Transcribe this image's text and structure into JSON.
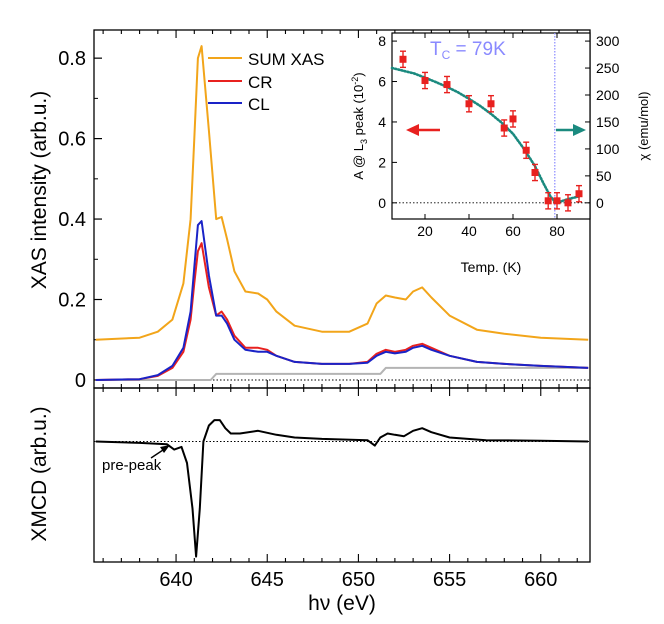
{
  "colors": {
    "sum": "#f2a51a",
    "cr": "#e8211f",
    "cl": "#1a23c7",
    "bg_step": "#b4b4b4",
    "xmcd": "#000000",
    "inset_points": "#e8211f",
    "inset_fit": "#1b8a7f",
    "tc_line": "#8a8aff",
    "arrow_left": "#e8211f",
    "arrow_right": "#1b8a7f"
  },
  "chart_data": [
    {
      "type": "line",
      "panel": "main-xas",
      "ylabel": "XAS intensity (arb.u.)",
      "xlim": [
        635.5,
        662.7
      ],
      "ylim": [
        -0.02,
        0.87
      ],
      "xticks": [
        640,
        645,
        650,
        655,
        660
      ],
      "yticks": [
        {
          "v": 0,
          "t": "0"
        },
        {
          "v": 0.2,
          "t": "0.2"
        },
        {
          "v": 0.4,
          "t": "0.4"
        },
        {
          "v": 0.6,
          "t": "0.6"
        },
        {
          "v": 0.8,
          "t": "0.8"
        }
      ],
      "legend_position": "top-right",
      "series": [
        {
          "name": "SUM XAS",
          "key": "sum",
          "x": [
            635.6,
            638.0,
            639.0,
            639.8,
            640.4,
            640.8,
            641.0,
            641.2,
            641.4,
            641.8,
            642.2,
            642.5,
            642.8,
            643.2,
            643.8,
            644.5,
            645.0,
            645.5,
            646.5,
            648.0,
            649.5,
            650.5,
            651.0,
            651.5,
            652.0,
            652.6,
            653.0,
            653.5,
            654.0,
            655.0,
            656.5,
            658.0,
            660.0,
            662.6
          ],
          "y": [
            0.1,
            0.105,
            0.12,
            0.15,
            0.24,
            0.4,
            0.6,
            0.8,
            0.83,
            0.62,
            0.4,
            0.405,
            0.35,
            0.27,
            0.22,
            0.215,
            0.2,
            0.17,
            0.135,
            0.12,
            0.12,
            0.14,
            0.19,
            0.21,
            0.205,
            0.2,
            0.22,
            0.23,
            0.205,
            0.16,
            0.125,
            0.115,
            0.105,
            0.1
          ]
        },
        {
          "name": "CR",
          "key": "cr",
          "x": [
            635.6,
            638.0,
            639.0,
            639.8,
            640.4,
            640.8,
            641.0,
            641.2,
            641.4,
            641.8,
            642.2,
            642.5,
            642.8,
            643.2,
            643.8,
            644.5,
            645.0,
            645.5,
            646.5,
            648.0,
            649.5,
            650.5,
            651.0,
            651.5,
            652.0,
            652.6,
            653.0,
            653.5,
            654.0,
            655.0,
            656.5,
            658.0,
            660.0,
            662.6
          ],
          "y": [
            0.0,
            0.002,
            0.01,
            0.03,
            0.07,
            0.15,
            0.24,
            0.32,
            0.34,
            0.23,
            0.16,
            0.17,
            0.15,
            0.11,
            0.08,
            0.08,
            0.075,
            0.06,
            0.045,
            0.04,
            0.04,
            0.045,
            0.065,
            0.075,
            0.07,
            0.075,
            0.085,
            0.09,
            0.08,
            0.06,
            0.045,
            0.04,
            0.035,
            0.03
          ]
        },
        {
          "name": "CL",
          "key": "cl",
          "x": [
            635.6,
            638.0,
            639.0,
            639.8,
            640.4,
            640.8,
            641.0,
            641.2,
            641.4,
            641.8,
            642.2,
            642.5,
            642.8,
            643.2,
            643.8,
            644.5,
            645.0,
            645.5,
            646.5,
            648.0,
            649.5,
            650.5,
            651.0,
            651.5,
            652.0,
            652.6,
            653.0,
            653.5,
            654.0,
            655.0,
            656.5,
            658.0,
            660.0,
            662.6
          ],
          "y": [
            0.0,
            0.002,
            0.012,
            0.035,
            0.08,
            0.17,
            0.28,
            0.385,
            0.395,
            0.26,
            0.16,
            0.16,
            0.14,
            0.1,
            0.075,
            0.07,
            0.07,
            0.06,
            0.045,
            0.04,
            0.04,
            0.043,
            0.06,
            0.07,
            0.066,
            0.07,
            0.08,
            0.085,
            0.075,
            0.06,
            0.045,
            0.04,
            0.035,
            0.03
          ]
        },
        {
          "name": "",
          "key": "bg_step",
          "x": [
            635.6,
            641.9,
            642.2,
            651.2,
            651.5,
            662.6
          ],
          "y": [
            0.0,
            0.0,
            0.015,
            0.015,
            0.03,
            0.03
          ]
        }
      ],
      "reference_line_y": 0
    },
    {
      "type": "line",
      "panel": "main-xmcd",
      "ylabel": "XMCD (arb.u.)",
      "xlabel": "hν (eV)",
      "xlim": [
        635.5,
        662.7
      ],
      "ylim": [
        -0.45,
        0.2
      ],
      "xticks": [
        640,
        645,
        650,
        655,
        660
      ],
      "annotation": "pre-peak",
      "series": [
        {
          "name": "XMCD",
          "key": "xmcd",
          "x": [
            635.6,
            638.0,
            639.5,
            639.9,
            640.3,
            640.6,
            640.9,
            641.1,
            641.3,
            641.5,
            641.8,
            642.1,
            642.4,
            642.7,
            643.0,
            643.5,
            644.5,
            645.5,
            646.5,
            648.0,
            650.5,
            650.9,
            651.2,
            651.6,
            652.0,
            652.5,
            653.0,
            653.5,
            654.0,
            655.0,
            657.0,
            660.0,
            662.6
          ],
          "y": [
            0.0,
            -0.005,
            -0.01,
            -0.03,
            -0.02,
            -0.08,
            -0.25,
            -0.43,
            -0.25,
            0.0,
            0.06,
            0.08,
            0.08,
            0.05,
            0.03,
            0.03,
            0.04,
            0.025,
            0.015,
            0.01,
            0.005,
            -0.015,
            0.015,
            0.03,
            0.025,
            0.02,
            0.04,
            0.05,
            0.035,
            0.015,
            0.005,
            0.003,
            0.0
          ]
        }
      ],
      "reference_line_y": 0
    },
    {
      "type": "scatter",
      "panel": "inset",
      "xlabel": "Temp. (K)",
      "ylabel": "A @ L₃ peak (10⁻²)",
      "y2label": "χ (emu/mol)",
      "xlim": [
        5,
        95
      ],
      "ylim": [
        -0.8,
        8.4
      ],
      "y2lim": [
        -30,
        315
      ],
      "xticks": [
        20,
        40,
        60,
        80
      ],
      "yticks": [
        0,
        2,
        4,
        6,
        8
      ],
      "y2ticks": [
        0,
        50,
        100,
        150,
        200,
        250,
        300
      ],
      "annotation": "T_C = 79K",
      "tc": 79,
      "series": [
        {
          "name": "A @ L3 peak",
          "key": "inset_points",
          "x": [
            10,
            20,
            30,
            40,
            50,
            56,
            60,
            66,
            70,
            76,
            80,
            85,
            90
          ],
          "y": [
            7.1,
            6.05,
            5.85,
            4.9,
            4.9,
            3.7,
            4.15,
            2.6,
            1.5,
            0.1,
            0.1,
            0.0,
            0.45
          ],
          "err": [
            0.4,
            0.4,
            0.4,
            0.4,
            0.4,
            0.4,
            0.4,
            0.4,
            0.4,
            0.4,
            0.4,
            0.4,
            0.4
          ]
        },
        {
          "name": "χ",
          "key": "inset_fit",
          "axis": "y2",
          "x": [
            5,
            10,
            15,
            20,
            25,
            30,
            35,
            40,
            45,
            50,
            55,
            60,
            65,
            70,
            74,
            77,
            79,
            82,
            85,
            90
          ],
          "y": [
            250,
            245,
            240,
            232,
            224,
            215,
            205,
            193,
            180,
            165,
            148,
            128,
            100,
            68,
            35,
            12,
            2,
            3,
            7,
            12
          ]
        }
      ]
    }
  ],
  "legend": {
    "items": [
      {
        "label": "SUM XAS",
        "key": "sum"
      },
      {
        "label": "CR",
        "key": "cr"
      },
      {
        "label": "CL",
        "key": "cl"
      }
    ]
  },
  "labels": {
    "xas_ylabel": "XAS intensity (arb.u.)",
    "xmcd_ylabel": "XMCD (arb.u.)",
    "xlabel": "hν (eV)",
    "prepeak": "pre-peak",
    "inset_xlabel": "Temp. (K)",
    "inset_ylabel_main": "A @ L",
    "inset_ylabel_sub": "3",
    "inset_ylabel_rest": " peak (10",
    "inset_ylabel_exp": "-2",
    "inset_ylabel_close": ")",
    "inset_y2label": "χ (emu/mol)",
    "tc_main": "T",
    "tc_sub": "C",
    "tc_rest": " = 79K"
  }
}
